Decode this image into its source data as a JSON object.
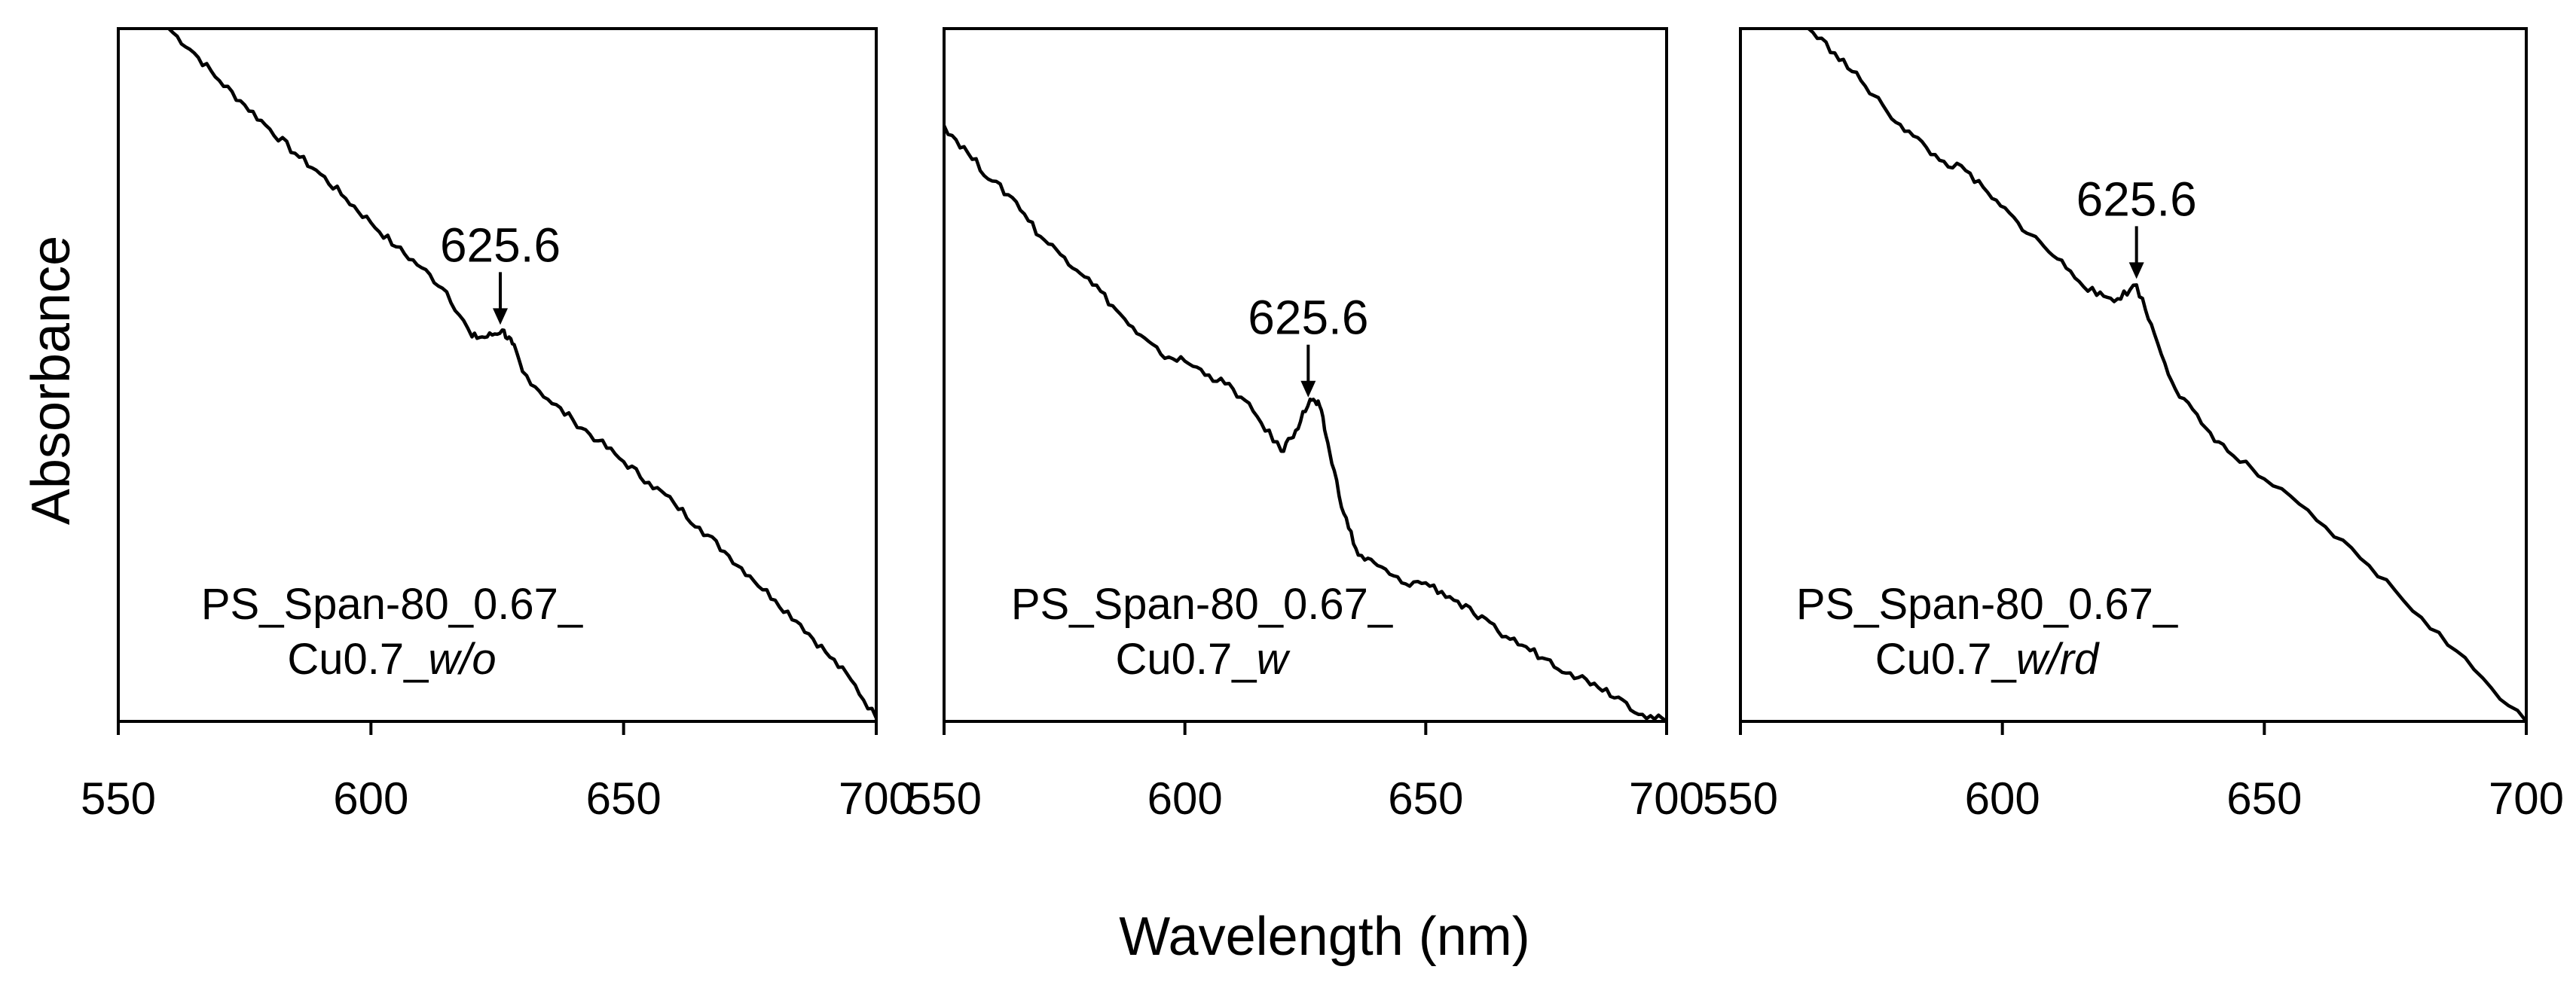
{
  "figure": {
    "ylabel": "Absorbance",
    "xlabel": "Wavelength (nm)"
  },
  "chart_data": [
    {
      "type": "line",
      "xlabel": "Wavelength (nm)",
      "ylabel": "Absorbance",
      "xlim": [
        550,
        700
      ],
      "ylim": [
        0,
        1
      ],
      "xticks": [
        550,
        600,
        650,
        700
      ],
      "xtick_labels": [
        "550",
        "600",
        "650",
        "700"
      ],
      "annotation": {
        "text": "625.6",
        "x": 625.6
      },
      "sample_label": {
        "prefix": "PS_Span-80_0.67_",
        "suffix_plain": "Cu0.7_",
        "suffix_italic": "w/o"
      },
      "series": [
        {
          "name": "PS_Span-80_0.67_Cu0.7_w/o",
          "x": [
            560,
            565,
            570,
            575,
            580,
            585,
            590,
            595,
            600,
            605,
            610,
            615,
            620,
            623,
            626,
            628,
            630,
            635,
            640,
            645,
            650,
            655,
            660,
            665,
            670,
            675,
            680,
            685,
            690,
            695,
            700
          ],
          "y": [
            1.0,
            0.965,
            0.925,
            0.89,
            0.855,
            0.82,
            0.79,
            0.755,
            0.72,
            0.685,
            0.655,
            0.62,
            0.555,
            0.555,
            0.565,
            0.545,
            0.505,
            0.465,
            0.435,
            0.405,
            0.375,
            0.345,
            0.315,
            0.28,
            0.245,
            0.21,
            0.175,
            0.14,
            0.1,
            0.06,
            0.005
          ]
        }
      ]
    },
    {
      "type": "line",
      "xlabel": "Wavelength (nm)",
      "ylabel": "Absorbance",
      "xlim": [
        550,
        700
      ],
      "ylim": [
        0,
        1
      ],
      "xticks": [
        550,
        600,
        650,
        700
      ],
      "xtick_labels": [
        "550",
        "600",
        "650",
        "700"
      ],
      "annotation": {
        "text": "625.6",
        "x": 625.6
      },
      "sample_label": {
        "prefix": "PS_Span-80_0.67_",
        "suffix_plain": "Cu0.7_",
        "suffix_italic": "w"
      },
      "series": [
        {
          "name": "PS_Span-80_0.67_Cu0.7_w",
          "x": [
            550,
            555,
            560,
            565,
            570,
            575,
            580,
            585,
            590,
            595,
            600,
            605,
            610,
            615,
            620,
            623,
            626,
            628,
            630,
            633,
            636,
            640,
            645,
            650,
            655,
            660,
            665,
            670,
            675,
            680,
            685,
            690,
            695,
            700
          ],
          "y": [
            0.86,
            0.82,
            0.78,
            0.75,
            0.7,
            0.67,
            0.64,
            0.6,
            0.56,
            0.53,
            0.52,
            0.5,
            0.48,
            0.44,
            0.39,
            0.42,
            0.465,
            0.455,
            0.39,
            0.3,
            0.24,
            0.225,
            0.2,
            0.2,
            0.18,
            0.155,
            0.13,
            0.11,
            0.09,
            0.07,
            0.055,
            0.035,
            0.01,
            0.0
          ]
        }
      ]
    },
    {
      "type": "line",
      "xlabel": "Wavelength (nm)",
      "ylabel": "Absorbance",
      "xlim": [
        550,
        700
      ],
      "ylim": [
        0,
        1
      ],
      "xticks": [
        550,
        600,
        650,
        700
      ],
      "xtick_labels": [
        "550",
        "600",
        "650",
        "700"
      ],
      "annotation": {
        "text": "625.6",
        "x": 625.6
      },
      "sample_label": {
        "prefix": "PS_Span-80_0.67_",
        "suffix_plain": "Cu0.7_",
        "suffix_italic": "w/rd"
      },
      "series": [
        {
          "name": "PS_Span-80_0.67_Cu0.7_w/rd",
          "x": [
            563,
            568,
            573,
            578,
            583,
            588,
            593,
            598,
            603,
            608,
            613,
            618,
            622,
            625.6,
            629,
            633,
            638,
            643,
            650,
            660,
            670,
            680,
            690,
            700
          ],
          "y": [
            1.0,
            0.965,
            0.925,
            0.88,
            0.845,
            0.81,
            0.795,
            0.755,
            0.72,
            0.685,
            0.65,
            0.615,
            0.61,
            0.63,
            0.56,
            0.48,
            0.43,
            0.39,
            0.35,
            0.29,
            0.225,
            0.15,
            0.075,
            0.0
          ]
        }
      ]
    }
  ]
}
